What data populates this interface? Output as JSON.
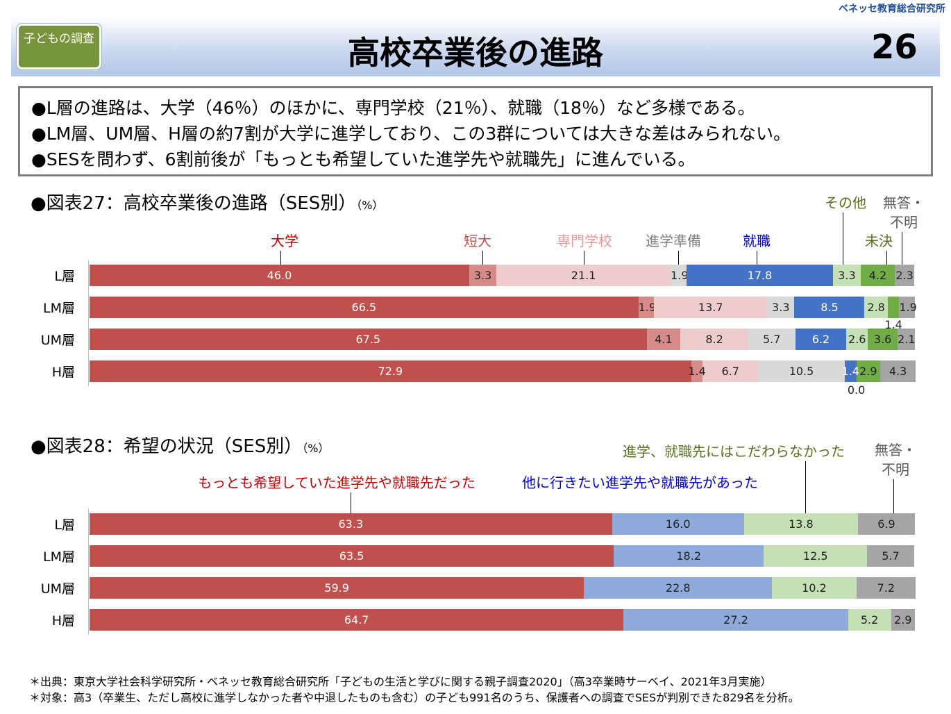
{
  "header": {
    "org": "ベネッセ教育総合研究所",
    "badge": "子どもの調査",
    "title": "高校卒業後の進路",
    "page": "26"
  },
  "summary": [
    "●L層の進路は、大学（46％）のほかに、専門学校（21％）、就職（18％）など多様である。",
    "●LM層、UM層、H層の約7割が大学に進学しており、この3群については大きな差はみられない。",
    "●SESを問わず、6割前後が「もっとも希望していた進学先や就職先」に進んでいる。"
  ],
  "chart_data": [
    {
      "type": "bar",
      "stacked": true,
      "orientation": "horizontal",
      "title": "●図表27：高校卒業後の進路（SES別）",
      "unit": "（%）",
      "categories": [
        "L層",
        "LM層",
        "UM層",
        "H層"
      ],
      "series": [
        {
          "name": "大学",
          "color": "#c0504d",
          "label_color": "#c00000",
          "values": [
            46.0,
            66.5,
            67.5,
            72.9
          ]
        },
        {
          "name": "短大",
          "color": "#d78b89",
          "label_color": "#c0504d",
          "values": [
            3.3,
            1.9,
            4.1,
            1.4
          ]
        },
        {
          "name": "専門学校",
          "color": "#eecccb",
          "label_color": "#e59a99",
          "values": [
            21.1,
            13.7,
            8.2,
            6.7
          ]
        },
        {
          "name": "進学準備",
          "color": "#d9d9d9",
          "label_color": "#808080",
          "values": [
            1.9,
            3.3,
            5.7,
            10.5
          ]
        },
        {
          "name": "就職",
          "color": "#4472c4",
          "label_color": "#0000cc",
          "values": [
            17.8,
            8.5,
            6.2,
            1.4
          ]
        },
        {
          "name": "その他",
          "color": "#c5e0b4",
          "label_color": "#5a6e1e",
          "values": [
            3.3,
            2.8,
            2.6,
            0.0
          ]
        },
        {
          "name": "未決",
          "color": "#70ad47",
          "label_color": "#5a6e1e",
          "values": [
            4.2,
            1.4,
            3.6,
            2.9
          ]
        },
        {
          "name": "無答・不明",
          "color": "#a5a5a5",
          "label_color": "#595959",
          "values": [
            2.3,
            1.9,
            2.1,
            4.3
          ]
        }
      ]
    },
    {
      "type": "bar",
      "stacked": true,
      "orientation": "horizontal",
      "title": "●図表28：希望の状況（SES別）",
      "unit": "（%）",
      "categories": [
        "L層",
        "LM層",
        "UM層",
        "H層"
      ],
      "series": [
        {
          "name": "もっとも希望していた進学先や就職先だった",
          "color": "#c0504d",
          "label_color": "#c00000",
          "values": [
            63.3,
            63.5,
            59.9,
            64.7
          ]
        },
        {
          "name": "他に行きたい進学先や就職先があった",
          "color": "#8eaadb",
          "label_color": "#0000cc",
          "values": [
            16.0,
            18.2,
            22.8,
            27.2
          ]
        },
        {
          "name": "進学、就職先にはこだわらなかった",
          "color": "#c5e0b4",
          "label_color": "#5a6e1e",
          "values": [
            13.8,
            12.5,
            10.2,
            5.2
          ]
        },
        {
          "name": "無答・不明",
          "color": "#a5a5a5",
          "label_color": "#595959",
          "values": [
            6.9,
            5.7,
            7.2,
            2.9
          ]
        }
      ]
    }
  ],
  "notes": [
    "＊出典：東京大学社会科学研究所・ベネッセ教育総合研究所「子どもの生活と学びに関する親子調査2020」（高3卒業時サーベイ、2021年3月実施）",
    "＊対象：高3（卒業生、ただし高校に進学しなかった者や中退したものも含む）の子ども991名のうち、保護者への調査でSESが判別できた829名を分析。"
  ]
}
